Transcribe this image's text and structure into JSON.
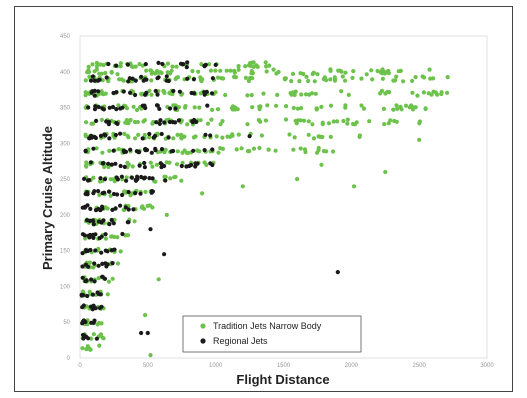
{
  "chart_data": {
    "type": "scatter",
    "title": "",
    "xlabel": "Flight Distance",
    "ylabel": "Primary Cruise Altitude",
    "xlim": [
      0,
      3000
    ],
    "ylim": [
      0,
      450
    ],
    "x_ticks": [
      "0",
      "500",
      "1000",
      "1500",
      "2000",
      "2500",
      "3000"
    ],
    "y_ticks": [
      "0",
      "50",
      "100",
      "150",
      "200",
      "250",
      "300",
      "350",
      "400",
      "450"
    ],
    "grid": false,
    "legend_position": "bottom-center",
    "series": [
      {
        "name": "Tradition Jets Narrow Body",
        "color": "#6cc24a",
        "marker": "circle",
        "bands": [
          {
            "y": 410,
            "x_min": 60,
            "x_max": 1400,
            "n": 40
          },
          {
            "y": 400,
            "x_min": 40,
            "x_max": 2600,
            "n": 70
          },
          {
            "y": 390,
            "x_min": 40,
            "x_max": 2750,
            "n": 80
          },
          {
            "y": 370,
            "x_min": 40,
            "x_max": 2750,
            "n": 80
          },
          {
            "y": 350,
            "x_min": 40,
            "x_max": 2600,
            "n": 70
          },
          {
            "y": 330,
            "x_min": 40,
            "x_max": 2600,
            "n": 70
          },
          {
            "y": 310,
            "x_min": 40,
            "x_max": 2100,
            "n": 55
          },
          {
            "y": 290,
            "x_min": 40,
            "x_max": 1900,
            "n": 50
          },
          {
            "y": 270,
            "x_min": 40,
            "x_max": 1000,
            "n": 30
          },
          {
            "y": 250,
            "x_min": 40,
            "x_max": 800,
            "n": 24
          },
          {
            "y": 230,
            "x_min": 40,
            "x_max": 650,
            "n": 20
          },
          {
            "y": 210,
            "x_min": 40,
            "x_max": 550,
            "n": 18
          },
          {
            "y": 190,
            "x_min": 40,
            "x_max": 450,
            "n": 16
          },
          {
            "y": 170,
            "x_min": 30,
            "x_max": 380,
            "n": 14
          },
          {
            "y": 150,
            "x_min": 30,
            "x_max": 320,
            "n": 13
          },
          {
            "y": 130,
            "x_min": 30,
            "x_max": 280,
            "n": 12
          },
          {
            "y": 110,
            "x_min": 30,
            "x_max": 250,
            "n": 11
          },
          {
            "y": 90,
            "x_min": 20,
            "x_max": 230,
            "n": 10
          },
          {
            "y": 70,
            "x_min": 20,
            "x_max": 210,
            "n": 9
          },
          {
            "y": 50,
            "x_min": 20,
            "x_max": 200,
            "n": 9
          },
          {
            "y": 30,
            "x_min": 20,
            "x_max": 180,
            "n": 8
          },
          {
            "y": 15,
            "x_min": 10,
            "x_max": 150,
            "n": 7
          }
        ],
        "points": [
          {
            "x": 1480,
            "y": 35
          },
          {
            "x": 2020,
            "y": 240
          },
          {
            "x": 2250,
            "y": 260
          },
          {
            "x": 1780,
            "y": 270
          },
          {
            "x": 1600,
            "y": 250
          },
          {
            "x": 2500,
            "y": 305
          },
          {
            "x": 580,
            "y": 110
          },
          {
            "x": 640,
            "y": 200
          },
          {
            "x": 900,
            "y": 230
          },
          {
            "x": 520,
            "y": 4
          },
          {
            "x": 480,
            "y": 60
          },
          {
            "x": 1200,
            "y": 240
          }
        ]
      },
      {
        "name": "Regional Jets",
        "color": "#1a1a1a",
        "marker": "circle",
        "bands": [
          {
            "y": 410,
            "x_min": 200,
            "x_max": 1000,
            "n": 14
          },
          {
            "y": 390,
            "x_min": 80,
            "x_max": 1000,
            "n": 22
          },
          {
            "y": 370,
            "x_min": 80,
            "x_max": 1000,
            "n": 22
          },
          {
            "y": 350,
            "x_min": 60,
            "x_max": 1000,
            "n": 20
          },
          {
            "y": 330,
            "x_min": 60,
            "x_max": 900,
            "n": 18
          },
          {
            "y": 310,
            "x_min": 60,
            "x_max": 1000,
            "n": 20
          },
          {
            "y": 290,
            "x_min": 40,
            "x_max": 1050,
            "n": 24
          },
          {
            "y": 270,
            "x_min": 40,
            "x_max": 1000,
            "n": 24
          },
          {
            "y": 250,
            "x_min": 30,
            "x_max": 650,
            "n": 20
          },
          {
            "y": 230,
            "x_min": 30,
            "x_max": 550,
            "n": 18
          },
          {
            "y": 210,
            "x_min": 20,
            "x_max": 450,
            "n": 16
          },
          {
            "y": 190,
            "x_min": 20,
            "x_max": 380,
            "n": 14
          },
          {
            "y": 170,
            "x_min": 20,
            "x_max": 320,
            "n": 12
          },
          {
            "y": 150,
            "x_min": 15,
            "x_max": 280,
            "n": 11
          },
          {
            "y": 130,
            "x_min": 15,
            "x_max": 250,
            "n": 10
          },
          {
            "y": 110,
            "x_min": 10,
            "x_max": 230,
            "n": 9
          },
          {
            "y": 90,
            "x_min": 10,
            "x_max": 210,
            "n": 8
          },
          {
            "y": 70,
            "x_min": 10,
            "x_max": 190,
            "n": 8
          },
          {
            "y": 50,
            "x_min": 10,
            "x_max": 170,
            "n": 7
          },
          {
            "y": 30,
            "x_min": 10,
            "x_max": 150,
            "n": 6
          }
        ],
        "points": [
          {
            "x": 1900,
            "y": 120
          },
          {
            "x": 500,
            "y": 35
          },
          {
            "x": 450,
            "y": 35
          },
          {
            "x": 620,
            "y": 145
          },
          {
            "x": 520,
            "y": 180
          },
          {
            "x": 1250,
            "y": 310
          }
        ]
      }
    ]
  }
}
